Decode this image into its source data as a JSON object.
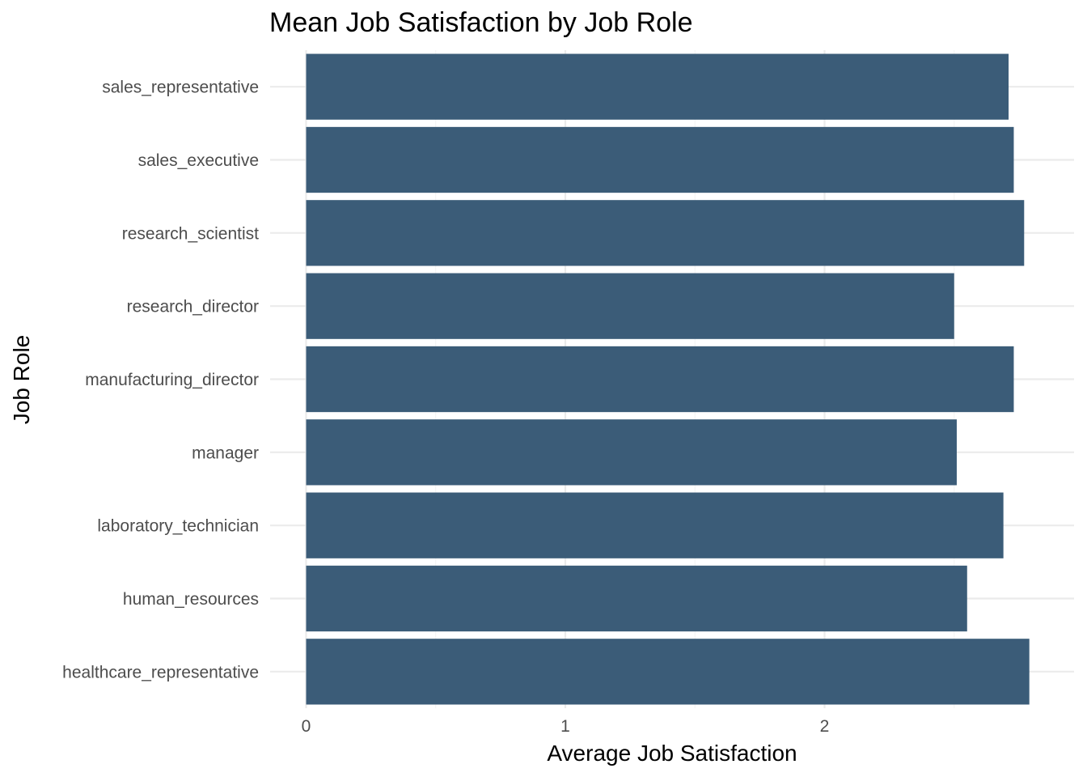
{
  "chart_data": {
    "type": "bar",
    "orientation": "horizontal",
    "title": "Mean Job Satisfaction by Job Role",
    "xlabel": "Average Job Satisfaction",
    "ylabel": "Job Role",
    "xlim": [
      0,
      2.83
    ],
    "x_ticks": [
      "0",
      "1",
      "2"
    ],
    "grid": true,
    "bar_color": "#3b5c78",
    "categories": [
      "healthcare_representative",
      "human_resources",
      "laboratory_technician",
      "manager",
      "manufacturing_director",
      "research_director",
      "research_scientist",
      "sales_executive",
      "sales_representative"
    ],
    "values": [
      2.79,
      2.55,
      2.69,
      2.51,
      2.73,
      2.5,
      2.77,
      2.73,
      2.71
    ]
  }
}
